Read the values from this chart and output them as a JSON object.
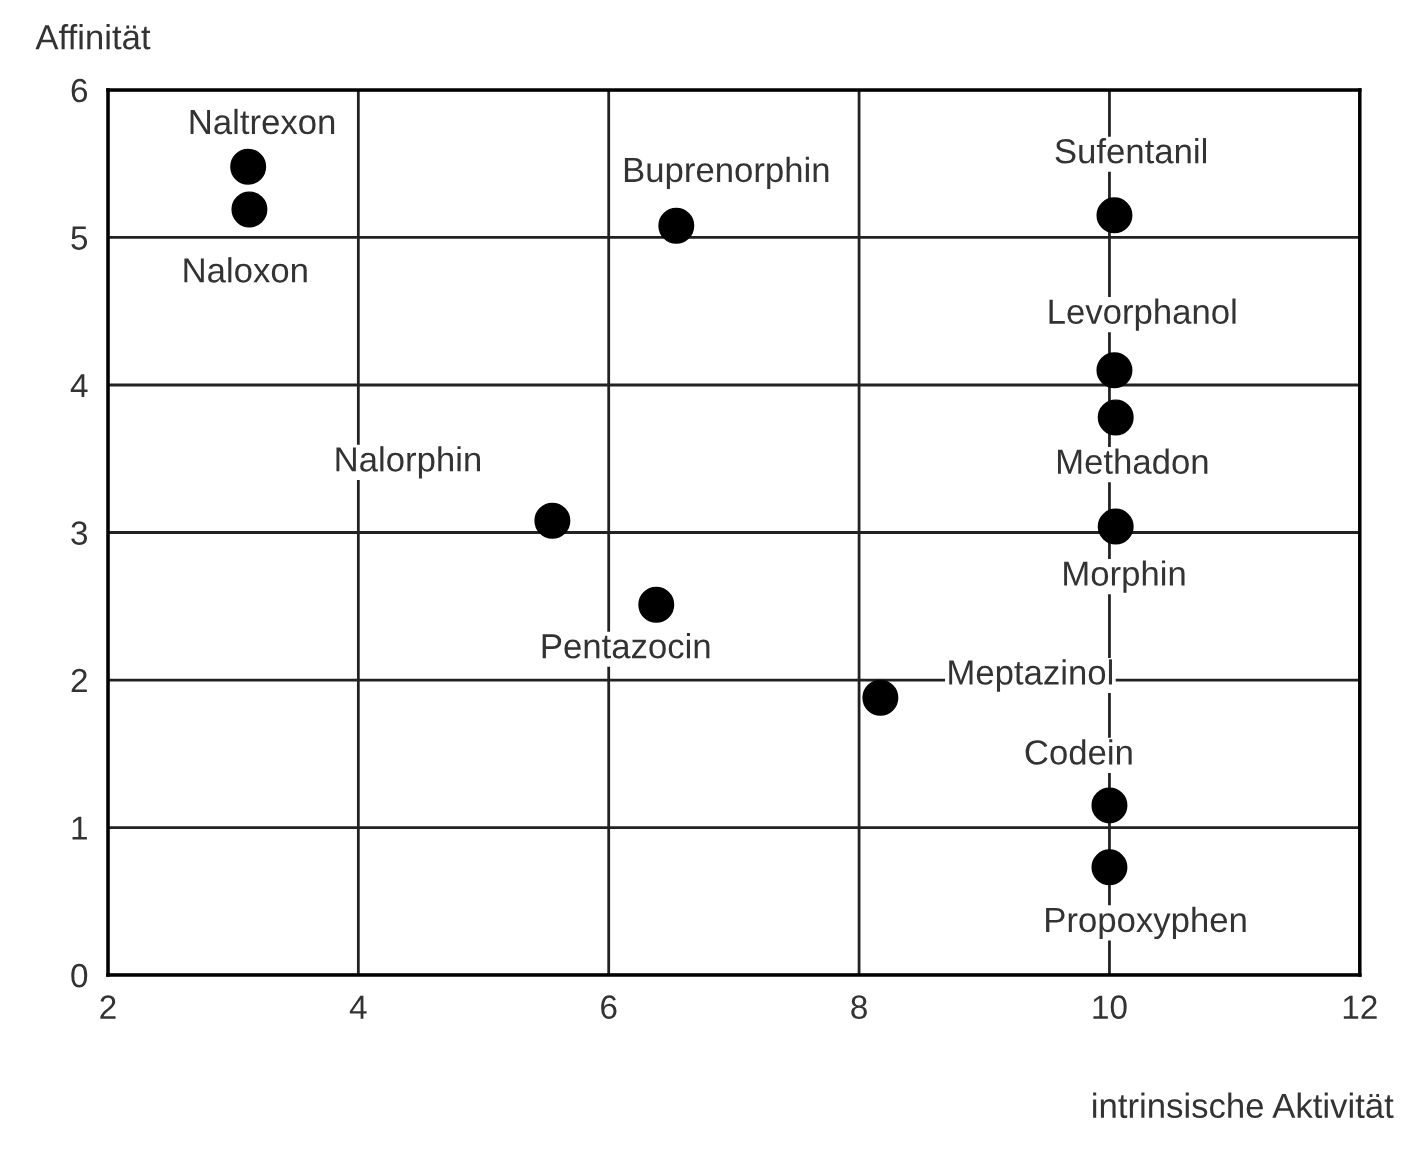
{
  "chart_data": {
    "type": "scatter",
    "xlabel": "intrinsische Aktivität",
    "ylabel": "Affinität",
    "x": [
      3.12,
      3.13,
      6.54,
      10.04,
      10.04,
      10.05,
      10.05,
      5.55,
      6.38,
      8.17,
      10.0,
      10.0
    ],
    "series": [
      {
        "color": "#000000",
        "values": [
          5.48,
          5.19,
          5.08,
          5.15,
          4.1,
          3.78,
          3.04,
          3.08,
          2.51,
          1.88,
          1.15,
          0.73
        ]
      }
    ],
    "annotations": [
      {
        "text": "Naltrexon",
        "x": 3.12,
        "y": 5.48
      },
      {
        "text": "Naloxon",
        "x": 3.13,
        "y": 5.19
      },
      {
        "text": "Buprenorphin",
        "x": 6.54,
        "y": 5.08
      },
      {
        "text": "Sufentanil",
        "x": 10.04,
        "y": 5.15
      },
      {
        "text": "Levorphanol",
        "x": 10.04,
        "y": 4.1
      },
      {
        "text": "Methadon",
        "x": 10.05,
        "y": 3.78
      },
      {
        "text": "Morphin",
        "x": 10.05,
        "y": 3.04
      },
      {
        "text": "Nalorphin",
        "x": 5.55,
        "y": 3.08
      },
      {
        "text": "Pentazocin",
        "x": 6.38,
        "y": 2.51
      },
      {
        "text": "Meptazinol",
        "x": 8.17,
        "y": 1.88
      },
      {
        "text": "Codein",
        "x": 10.0,
        "y": 1.15
      },
      {
        "text": "Propoxyphen",
        "x": 10.0,
        "y": 0.73
      }
    ],
    "xlim": [
      2,
      12
    ],
    "ylim": [
      0,
      6
    ],
    "xticks": [
      2,
      4,
      6,
      8,
      10,
      12
    ],
    "yticks": [
      0,
      1,
      2,
      3,
      4,
      5,
      6
    ],
    "grid": true,
    "marker": "circle"
  }
}
